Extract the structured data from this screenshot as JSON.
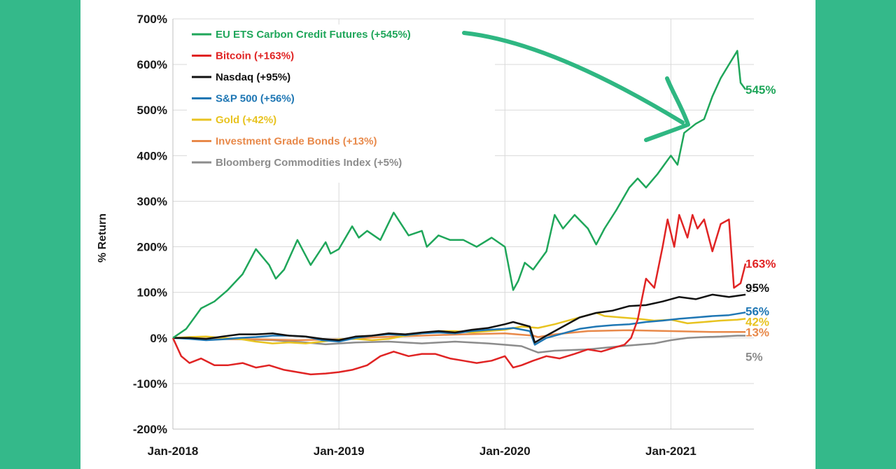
{
  "chart_data": {
    "type": "line",
    "title": "",
    "xlabel": "",
    "ylabel": "% Return",
    "ylim": [
      -200,
      700
    ],
    "xlim": [
      2018.0,
      2021.5
    ],
    "y_ticks": [
      -200,
      -100,
      0,
      100,
      200,
      300,
      400,
      500,
      600,
      700
    ],
    "y_tick_labels": [
      "-200%",
      "-100%",
      "0%",
      "100%",
      "200%",
      "300%",
      "400%",
      "500%",
      "600%",
      "700%"
    ],
    "x_ticks": [
      2018.0,
      2019.0,
      2020.0,
      2021.0
    ],
    "x_tick_labels": [
      "Jan-2018",
      "Jan-2019",
      "Jan-2020",
      "Jan-2021"
    ],
    "grid": "horizontal",
    "legend_position": "top-left",
    "series": [
      {
        "name": "EU ETS Carbon Credit Futures (+545%)",
        "color": "#1fa65a",
        "end_label": "545%",
        "x": [
          2018.0,
          2018.08,
          2018.17,
          2018.25,
          2018.33,
          2018.42,
          2018.5,
          2018.58,
          2018.62,
          2018.67,
          2018.75,
          2018.83,
          2018.92,
          2018.95,
          2019.0,
          2019.08,
          2019.12,
          2019.17,
          2019.25,
          2019.33,
          2019.42,
          2019.5,
          2019.53,
          2019.6,
          2019.67,
          2019.75,
          2019.83,
          2019.92,
          2020.0,
          2020.05,
          2020.08,
          2020.12,
          2020.17,
          2020.25,
          2020.3,
          2020.35,
          2020.42,
          2020.5,
          2020.55,
          2020.6,
          2020.67,
          2020.75,
          2020.8,
          2020.85,
          2020.92,
          2020.96,
          2021.0,
          2021.04,
          2021.08,
          2021.15,
          2021.2,
          2021.25,
          2021.3,
          2021.35,
          2021.4,
          2021.42,
          2021.45
        ],
        "values": [
          0,
          20,
          65,
          80,
          105,
          140,
          195,
          160,
          130,
          150,
          215,
          160,
          210,
          185,
          195,
          245,
          220,
          235,
          215,
          275,
          225,
          235,
          200,
          225,
          215,
          215,
          200,
          220,
          200,
          105,
          125,
          165,
          150,
          190,
          270,
          240,
          270,
          240,
          205,
          240,
          280,
          330,
          350,
          330,
          360,
          380,
          400,
          380,
          450,
          470,
          480,
          530,
          570,
          600,
          630,
          560,
          545
        ]
      },
      {
        "name": "Bitcoin (+163%)",
        "color": "#e02424",
        "end_label": "163%",
        "x": [
          2018.0,
          2018.05,
          2018.1,
          2018.17,
          2018.25,
          2018.33,
          2018.42,
          2018.5,
          2018.58,
          2018.67,
          2018.75,
          2018.83,
          2018.92,
          2019.0,
          2019.08,
          2019.17,
          2019.25,
          2019.33,
          2019.42,
          2019.5,
          2019.58,
          2019.67,
          2019.75,
          2019.83,
          2019.92,
          2020.0,
          2020.05,
          2020.1,
          2020.17,
          2020.25,
          2020.33,
          2020.42,
          2020.5,
          2020.58,
          2020.67,
          2020.72,
          2020.76,
          2020.8,
          2020.85,
          2020.9,
          2020.95,
          2020.98,
          2021.02,
          2021.05,
          2021.1,
          2021.13,
          2021.16,
          2021.2,
          2021.25,
          2021.3,
          2021.35,
          2021.38,
          2021.42,
          2021.45
        ],
        "values": [
          0,
          -40,
          -55,
          -45,
          -60,
          -60,
          -55,
          -65,
          -60,
          -70,
          -75,
          -80,
          -78,
          -75,
          -70,
          -60,
          -40,
          -30,
          -40,
          -35,
          -35,
          -45,
          -50,
          -55,
          -50,
          -40,
          -65,
          -60,
          -50,
          -40,
          -45,
          -35,
          -25,
          -30,
          -20,
          -15,
          0,
          40,
          130,
          110,
          200,
          260,
          200,
          270,
          220,
          270,
          240,
          260,
          190,
          250,
          260,
          110,
          120,
          163
        ]
      },
      {
        "name": "Nasdaq (+95%)",
        "color": "#111111",
        "end_label": "95%",
        "x": [
          2018.0,
          2018.1,
          2018.2,
          2018.3,
          2018.4,
          2018.5,
          2018.6,
          2018.7,
          2018.8,
          2018.9,
          2019.0,
          2019.1,
          2019.2,
          2019.3,
          2019.4,
          2019.5,
          2019.6,
          2019.7,
          2019.8,
          2019.9,
          2020.0,
          2020.05,
          2020.15,
          2020.18,
          2020.25,
          2020.35,
          2020.45,
          2020.55,
          2020.65,
          2020.75,
          2020.85,
          2020.95,
          2021.05,
          2021.15,
          2021.25,
          2021.35,
          2021.45
        ],
        "values": [
          0,
          0,
          -2,
          3,
          8,
          8,
          10,
          5,
          3,
          -2,
          -5,
          3,
          5,
          10,
          8,
          12,
          15,
          12,
          18,
          22,
          30,
          35,
          25,
          -10,
          5,
          25,
          45,
          55,
          60,
          70,
          72,
          80,
          90,
          85,
          95,
          90,
          95
        ]
      },
      {
        "name": "S&P 500 (+56%)",
        "color": "#1f77b4",
        "end_label": "56%",
        "x": [
          2018.0,
          2018.1,
          2018.2,
          2018.3,
          2018.4,
          2018.5,
          2018.6,
          2018.7,
          2018.8,
          2018.9,
          2019.0,
          2019.1,
          2019.2,
          2019.3,
          2019.4,
          2019.5,
          2019.6,
          2019.7,
          2019.8,
          2019.9,
          2020.0,
          2020.05,
          2020.15,
          2020.18,
          2020.25,
          2020.35,
          2020.45,
          2020.55,
          2020.65,
          2020.75,
          2020.85,
          2020.95,
          2021.05,
          2021.15,
          2021.25,
          2021.35,
          2021.45
        ],
        "values": [
          0,
          -2,
          -5,
          -3,
          0,
          2,
          5,
          5,
          3,
          -5,
          -8,
          0,
          5,
          8,
          6,
          10,
          12,
          10,
          15,
          18,
          20,
          22,
          15,
          -15,
          0,
          10,
          20,
          25,
          28,
          30,
          35,
          38,
          42,
          45,
          48,
          50,
          56
        ]
      },
      {
        "name": "Gold (+42%)",
        "color": "#e8c320",
        "end_label": "42%",
        "x": [
          2018.0,
          2018.1,
          2018.2,
          2018.3,
          2018.4,
          2018.5,
          2018.6,
          2018.7,
          2018.8,
          2018.9,
          2019.0,
          2019.1,
          2019.2,
          2019.3,
          2019.4,
          2019.5,
          2019.6,
          2019.7,
          2019.8,
          2019.9,
          2020.0,
          2020.1,
          2020.2,
          2020.3,
          2020.4,
          2020.5,
          2020.55,
          2020.6,
          2020.7,
          2020.8,
          2020.9,
          2021.0,
          2021.1,
          2021.2,
          2021.3,
          2021.4,
          2021.45
        ],
        "values": [
          0,
          2,
          3,
          0,
          -2,
          -8,
          -12,
          -10,
          -12,
          -8,
          -3,
          -2,
          -5,
          -2,
          5,
          10,
          15,
          15,
          12,
          15,
          18,
          25,
          22,
          30,
          40,
          50,
          55,
          48,
          45,
          42,
          38,
          40,
          32,
          35,
          38,
          40,
          42
        ]
      },
      {
        "name": "Investment Grade Bonds (+13%)",
        "color": "#e8894a",
        "end_label": "13%",
        "x": [
          2018.0,
          2018.25,
          2018.5,
          2018.75,
          2019.0,
          2019.25,
          2019.5,
          2019.75,
          2020.0,
          2020.17,
          2020.2,
          2020.3,
          2020.5,
          2020.75,
          2021.0,
          2021.25,
          2021.45
        ],
        "values": [
          0,
          -2,
          -3,
          -5,
          -3,
          2,
          5,
          8,
          10,
          5,
          2,
          8,
          15,
          17,
          15,
          13,
          13
        ]
      },
      {
        "name": "Bloomberg Commodities Index (+5%)",
        "color": "#8c8c8c",
        "end_label": "5%",
        "x": [
          2018.0,
          2018.2,
          2018.4,
          2018.6,
          2018.8,
          2018.92,
          2019.1,
          2019.3,
          2019.5,
          2019.7,
          2019.9,
          2020.0,
          2020.1,
          2020.2,
          2020.3,
          2020.5,
          2020.7,
          2020.9,
          2021.0,
          2021.1,
          2021.2,
          2021.3,
          2021.4,
          2021.45
        ],
        "values": [
          0,
          -2,
          -3,
          -5,
          -10,
          -14,
          -10,
          -8,
          -12,
          -8,
          -12,
          -15,
          -18,
          -32,
          -28,
          -25,
          -18,
          -12,
          -5,
          0,
          2,
          3,
          5,
          5
        ]
      }
    ]
  }
}
